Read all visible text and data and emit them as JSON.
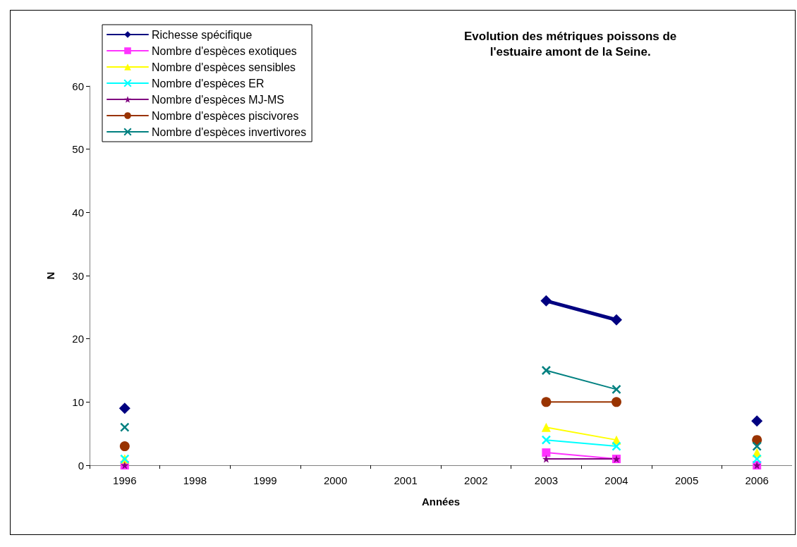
{
  "chart_data": {
    "type": "line",
    "title": "Evolution des métriques poissons de\nl'estuaire amont de la Seine.",
    "xlabel": "Années",
    "ylabel": "N",
    "categories": [
      "1996",
      "1998",
      "1999",
      "2000",
      "2001",
      "2002",
      "2003",
      "2004",
      "2005",
      "2006"
    ],
    "ylim": [
      0,
      60
    ],
    "yticks": [
      0,
      10,
      20,
      30,
      40,
      50,
      60
    ],
    "grid": false,
    "legend": "top left",
    "series": [
      {
        "name": "Richesse spécifique",
        "color": "#000080",
        "marker": "diamond",
        "values": [
          9,
          null,
          null,
          null,
          null,
          null,
          26,
          23,
          null,
          7
        ]
      },
      {
        "name": "Nombre d'espèces exotiques",
        "color": "#ff33ff",
        "marker": "square",
        "values": [
          0,
          null,
          null,
          null,
          null,
          null,
          2,
          1,
          null,
          0
        ]
      },
      {
        "name": "Nombre d'espèces sensibles",
        "color": "#ffff00",
        "marker": "triangle",
        "values": [
          1,
          null,
          null,
          null,
          null,
          null,
          6,
          4,
          null,
          2
        ]
      },
      {
        "name": "Nombre d'espèces ER",
        "color": "#00ffff",
        "marker": "cross",
        "values": [
          1,
          null,
          null,
          null,
          null,
          null,
          4,
          3,
          null,
          1
        ]
      },
      {
        "name": "Nombre d'espèces MJ-MS",
        "color": "#800080",
        "marker": "star",
        "values": [
          0,
          null,
          null,
          null,
          null,
          null,
          1,
          1,
          null,
          0
        ]
      },
      {
        "name": "Nombre d'espèces piscivores",
        "color": "#993300",
        "marker": "circle",
        "values": [
          3,
          null,
          null,
          null,
          null,
          null,
          10,
          10,
          null,
          4
        ]
      },
      {
        "name": "Nombre d'espèces invertivores",
        "color": "#008080",
        "marker": "cross",
        "values": [
          6,
          null,
          null,
          null,
          null,
          null,
          15,
          12,
          null,
          3
        ]
      }
    ]
  }
}
